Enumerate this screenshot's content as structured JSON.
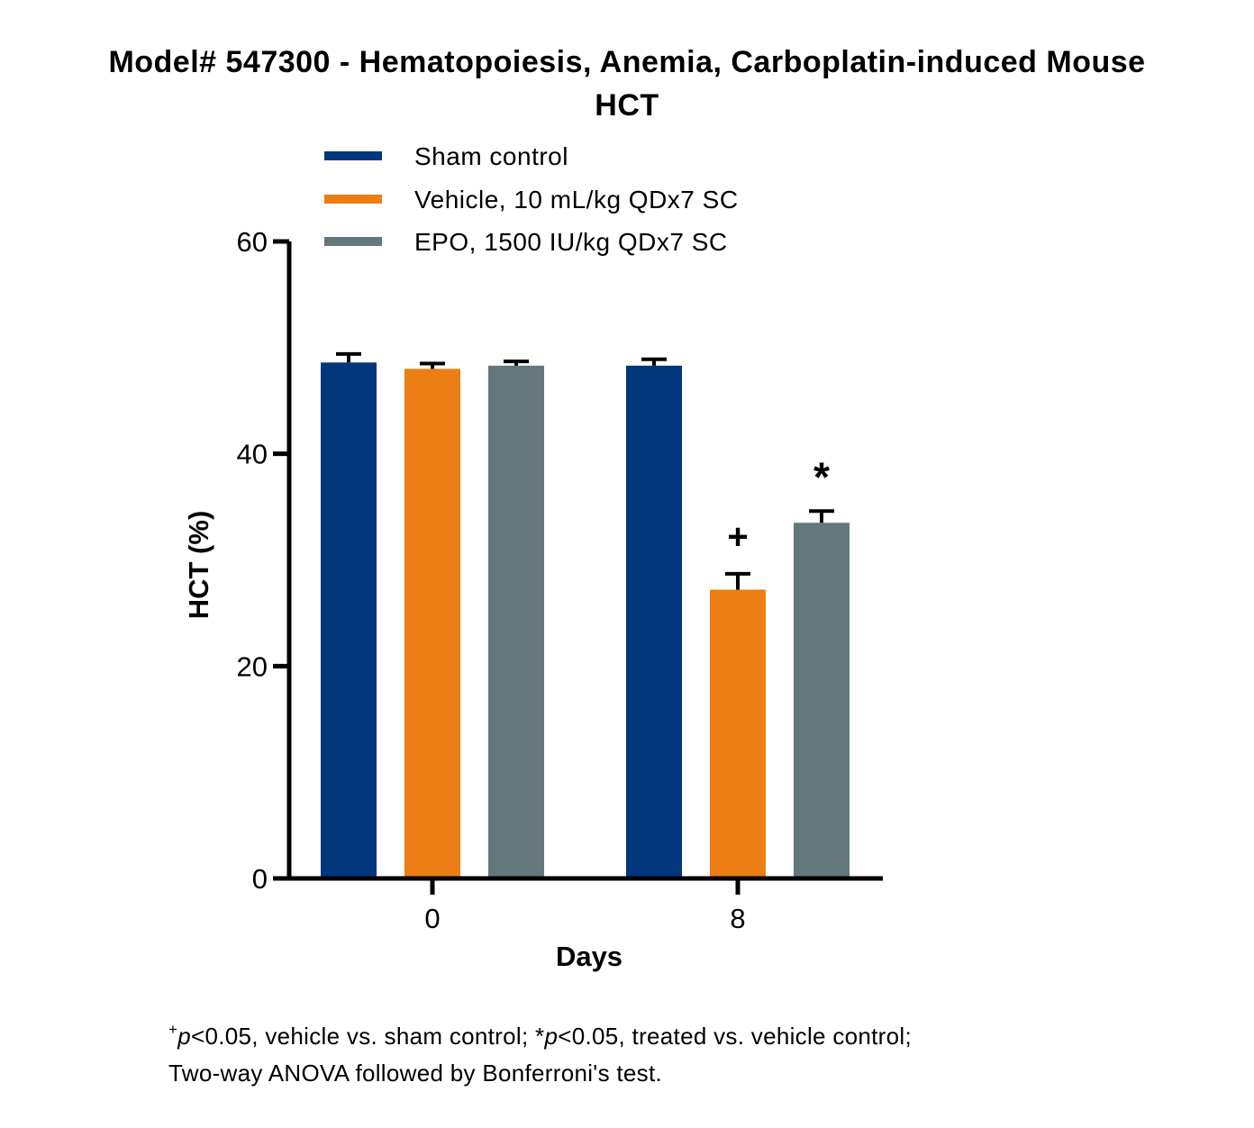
{
  "title": "Model# 547300 - Hematopoiesis, Anemia, Carboplatin-induced Mouse",
  "subtitle": "HCT",
  "chart_data": {
    "type": "bar",
    "title": "Model# 547300 - Hematopoiesis, Anemia, Carboplatin-induced Mouse",
    "subtitle": "HCT",
    "xlabel": "Days",
    "ylabel": "HCT (%)",
    "categories": [
      "0",
      "8"
    ],
    "ylim": [
      0,
      60
    ],
    "yticks": [
      "0",
      "20",
      "40",
      "60"
    ],
    "grid": false,
    "legend_position": "top",
    "series": [
      {
        "name": "Sham control",
        "color": "#02367D",
        "values": [
          48.6,
          48.3
        ],
        "errors": [
          0.8,
          0.6
        ]
      },
      {
        "name": "Vehicle, 10 mL/kg QDx7 SC",
        "color": "#EC7D14",
        "values": [
          48.0,
          27.2
        ],
        "errors": [
          0.5,
          1.5
        ]
      },
      {
        "name": "EPO, 1500 IU/kg QDx7 SC",
        "color": "#64777D",
        "values": [
          48.3,
          33.5
        ],
        "errors": [
          0.4,
          1.1
        ]
      }
    ],
    "annotations": [
      {
        "category": "8",
        "series": "Vehicle, 10 mL/kg QDx7 SC",
        "text": "+"
      },
      {
        "category": "8",
        "series": "EPO, 1500 IU/kg QDx7 SC",
        "text": "*"
      }
    ]
  },
  "footnote": {
    "sup": "+",
    "p_italic_1": "p",
    "part1": "<0.05, vehicle vs. sham control; *",
    "p_italic_2": "p",
    "part2": "<0.05, treated vs. vehicle control;",
    "line2": "Two-way ANOVA followed by Bonferroni's test."
  }
}
